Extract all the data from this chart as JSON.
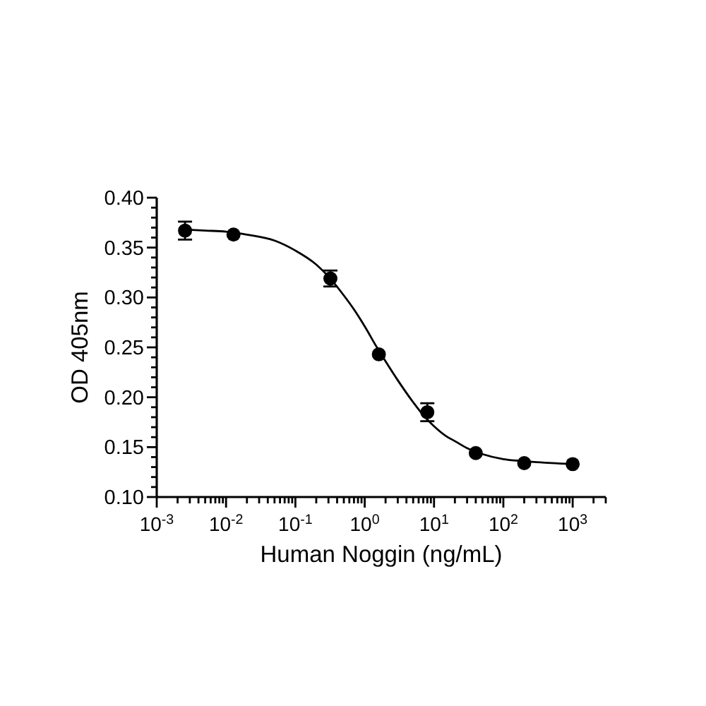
{
  "chart_data": {
    "type": "scatter",
    "xlabel": "Human Noggin (ng/mL)",
    "ylabel": "OD 405nm",
    "log": "x",
    "xlim": [
      0.001,
      3000
    ],
    "ylim": [
      0.1,
      0.4
    ],
    "xticks": [
      {
        "value": 0.001,
        "label": "10$^{-3}$"
      },
      {
        "value": 0.002,
        "label": null
      },
      {
        "value": 0.003,
        "label": null
      },
      {
        "value": 0.004,
        "label": null
      },
      {
        "value": 0.005,
        "label": null
      },
      {
        "value": 0.006,
        "label": null
      },
      {
        "value": 0.007,
        "label": null
      },
      {
        "value": 0.008,
        "label": null
      },
      {
        "value": 0.009,
        "label": null
      },
      {
        "value": 0.01,
        "label": "10$^{-2}$"
      },
      {
        "value": 0.02,
        "label": null
      },
      {
        "value": 0.03,
        "label": null
      },
      {
        "value": 0.04,
        "label": null
      },
      {
        "value": 0.05,
        "label": null
      },
      {
        "value": 0.06,
        "label": null
      },
      {
        "value": 0.07,
        "label": null
      },
      {
        "value": 0.08,
        "label": null
      },
      {
        "value": 0.09,
        "label": null
      },
      {
        "value": 0.1,
        "label": "10$^{-1}$"
      },
      {
        "value": 0.2,
        "label": null
      },
      {
        "value": 0.3,
        "label": null
      },
      {
        "value": 0.4,
        "label": null
      },
      {
        "value": 0.5,
        "label": null
      },
      {
        "value": 0.6,
        "label": null
      },
      {
        "value": 0.7,
        "label": null
      },
      {
        "value": 0.8,
        "label": null
      },
      {
        "value": 0.9,
        "label": null
      },
      {
        "value": 1,
        "label": "10$^{0}$"
      },
      {
        "value": 2,
        "label": null
      },
      {
        "value": 3,
        "label": null
      },
      {
        "value": 4,
        "label": null
      },
      {
        "value": 5,
        "label": null
      },
      {
        "value": 6,
        "label": null
      },
      {
        "value": 7,
        "label": null
      },
      {
        "value": 8,
        "label": null
      },
      {
        "value": 9,
        "label": null
      },
      {
        "value": 10,
        "label": "10$^{1}$"
      },
      {
        "value": 20,
        "label": null
      },
      {
        "value": 30,
        "label": null
      },
      {
        "value": 40,
        "label": null
      },
      {
        "value": 50,
        "label": null
      },
      {
        "value": 60,
        "label": null
      },
      {
        "value": 70,
        "label": null
      },
      {
        "value": 80,
        "label": null
      },
      {
        "value": 90,
        "label": null
      },
      {
        "value": 100,
        "label": "10$^{2}$"
      },
      {
        "value": 200,
        "label": null
      },
      {
        "value": 300,
        "label": null
      },
      {
        "value": 400,
        "label": null
      },
      {
        "value": 500,
        "label": null
      },
      {
        "value": 600,
        "label": null
      },
      {
        "value": 700,
        "label": null
      },
      {
        "value": 800,
        "label": null
      },
      {
        "value": 900,
        "label": null
      },
      {
        "value": 1000,
        "label": "10$^{3}$"
      },
      {
        "value": 2000,
        "label": null
      },
      {
        "value": 3000,
        "label": null
      }
    ],
    "yticks": [
      {
        "value": 0.1,
        "label": "0.10"
      },
      {
        "value": 0.11,
        "label": null
      },
      {
        "value": 0.12,
        "label": null
      },
      {
        "value": 0.13,
        "label": null
      },
      {
        "value": 0.14,
        "label": null
      },
      {
        "value": 0.15,
        "label": "0.15"
      },
      {
        "value": 0.16,
        "label": null
      },
      {
        "value": 0.17,
        "label": null
      },
      {
        "value": 0.18,
        "label": null
      },
      {
        "value": 0.19,
        "label": null
      },
      {
        "value": 0.2,
        "label": "0.20"
      },
      {
        "value": 0.21,
        "label": null
      },
      {
        "value": 0.22,
        "label": null
      },
      {
        "value": 0.23,
        "label": null
      },
      {
        "value": 0.24,
        "label": null
      },
      {
        "value": 0.25,
        "label": "0.25"
      },
      {
        "value": 0.26,
        "label": null
      },
      {
        "value": 0.27,
        "label": null
      },
      {
        "value": 0.28,
        "label": null
      },
      {
        "value": 0.29,
        "label": null
      },
      {
        "value": 0.3,
        "label": "0.30"
      },
      {
        "value": 0.31,
        "label": null
      },
      {
        "value": 0.32,
        "label": null
      },
      {
        "value": 0.33,
        "label": null
      },
      {
        "value": 0.34,
        "label": null
      },
      {
        "value": 0.35,
        "label": "0.35"
      },
      {
        "value": 0.36,
        "label": null
      },
      {
        "value": 0.37,
        "label": null
      },
      {
        "value": 0.38,
        "label": null
      },
      {
        "value": 0.39,
        "label": null
      },
      {
        "value": 0.4,
        "label": "0.40"
      }
    ],
    "series": [
      {
        "type": "line",
        "color": "#000000",
        "line_style": "solid",
        "x": [
          0.00256,
          0.005,
          0.01,
          0.02,
          0.05,
          0.1,
          0.2,
          0.3,
          0.5,
          0.7,
          1,
          1.5,
          2,
          3,
          5,
          7,
          10,
          15,
          20,
          30,
          50,
          100,
          200,
          500,
          1000
        ],
        "values": [
          0.368,
          0.367,
          0.366,
          0.363,
          0.357,
          0.347,
          0.333,
          0.321,
          0.302,
          0.288,
          0.271,
          0.25,
          0.236,
          0.217,
          0.195,
          0.182,
          0.171,
          0.161,
          0.156,
          0.149,
          0.143,
          0.138,
          0.136,
          0.134,
          0.133
        ]
      },
      {
        "color": "#000000",
        "marker": "circle",
        "x": [
          0.00256,
          0.0128,
          0.32,
          1.6,
          8,
          40,
          200,
          1000
        ],
        "values": [
          0.367,
          0.363,
          0.319,
          0.243,
          0.185,
          0.144,
          0.134,
          0.133
        ],
        "errors": [
          0.009,
          null,
          0.008,
          null,
          0.009,
          null,
          null,
          null
        ]
      }
    ]
  }
}
